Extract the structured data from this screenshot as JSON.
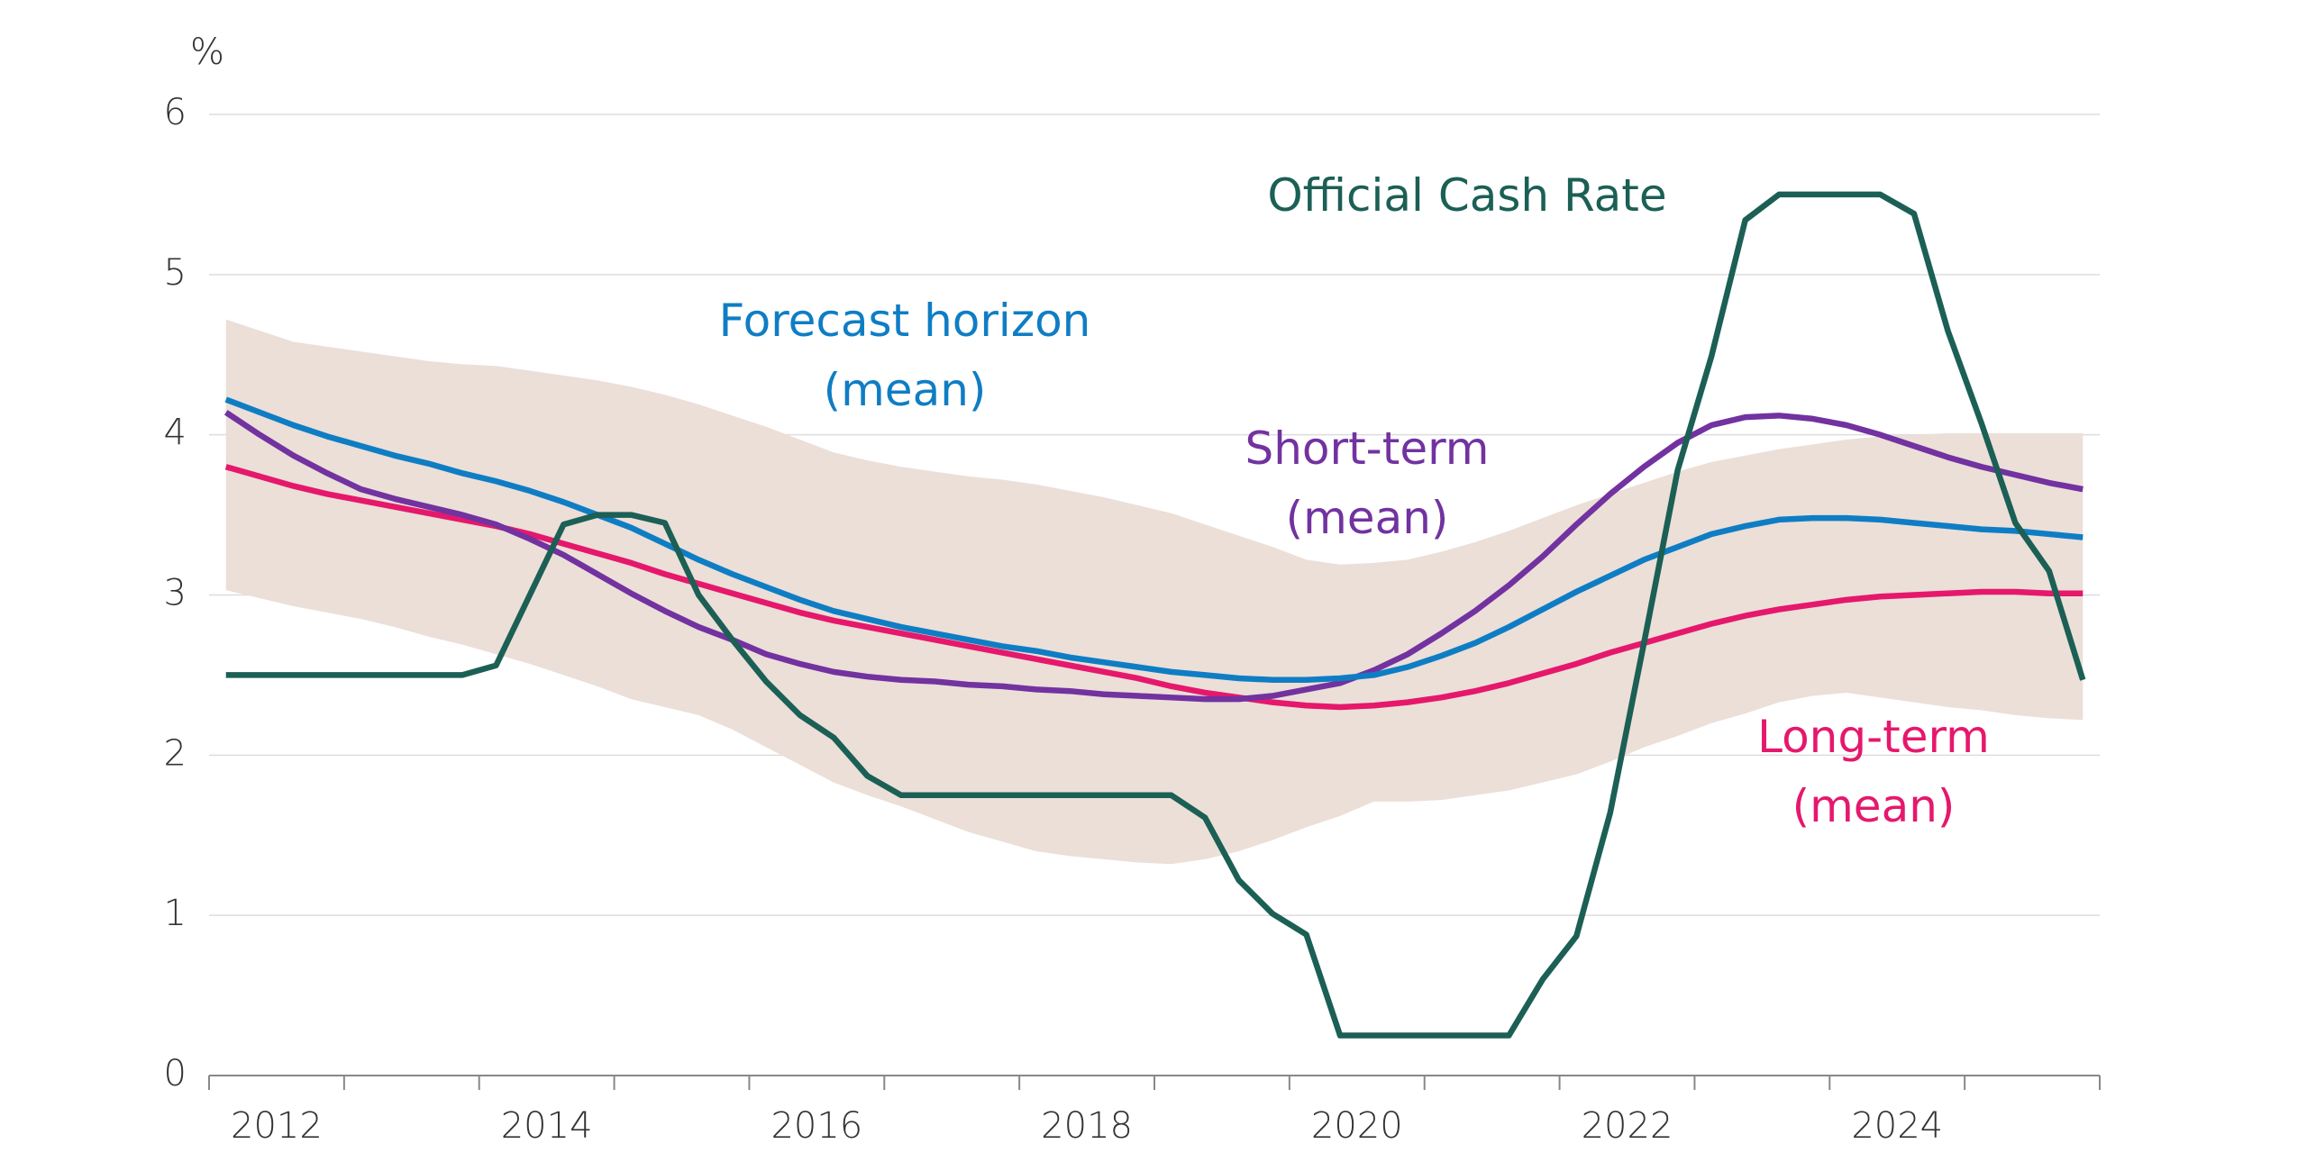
{
  "chart_data": {
    "type": "line",
    "y_unit": "%",
    "x": [
      2012.125,
      2012.375,
      2012.625,
      2012.875,
      2013.125,
      2013.375,
      2013.625,
      2013.875,
      2014.125,
      2014.375,
      2014.625,
      2014.875,
      2015.125,
      2015.375,
      2015.625,
      2015.875,
      2016.125,
      2016.375,
      2016.625,
      2016.875,
      2017.125,
      2017.375,
      2017.625,
      2017.875,
      2018.125,
      2018.375,
      2018.625,
      2018.875,
      2019.125,
      2019.375,
      2019.625,
      2019.875,
      2020.125,
      2020.375,
      2020.625,
      2020.875,
      2021.125,
      2021.375,
      2021.625,
      2021.875,
      2022.125,
      2022.375,
      2022.625,
      2022.875,
      2023.125,
      2023.375,
      2023.625,
      2023.875,
      2024.125,
      2024.375,
      2024.625,
      2024.875,
      2025.125,
      2025.375,
      2025.625,
      2025.875
    ],
    "band": {
      "color": "#ebdfd8",
      "upper": [
        4.72,
        4.65,
        4.58,
        4.55,
        4.52,
        4.49,
        4.46,
        4.44,
        4.43,
        4.4,
        4.37,
        4.34,
        4.3,
        4.25,
        4.19,
        4.12,
        4.05,
        3.97,
        3.89,
        3.84,
        3.8,
        3.77,
        3.74,
        3.72,
        3.69,
        3.65,
        3.61,
        3.56,
        3.51,
        3.44,
        3.37,
        3.3,
        3.22,
        3.19,
        3.2,
        3.22,
        3.27,
        3.33,
        3.4,
        3.48,
        3.56,
        3.63,
        3.7,
        3.77,
        3.83,
        3.87,
        3.91,
        3.94,
        3.97,
        3.99,
        4.0,
        4.01,
        4.01,
        4.01,
        4.01,
        4.01
      ],
      "lower": [
        3.03,
        2.98,
        2.93,
        2.89,
        2.85,
        2.8,
        2.74,
        2.69,
        2.63,
        2.57,
        2.5,
        2.43,
        2.35,
        2.3,
        2.25,
        2.16,
        2.05,
        1.94,
        1.83,
        1.75,
        1.68,
        1.6,
        1.52,
        1.46,
        1.4,
        1.37,
        1.35,
        1.33,
        1.32,
        1.35,
        1.4,
        1.47,
        1.55,
        1.62,
        1.71,
        1.71,
        1.72,
        1.75,
        1.78,
        1.83,
        1.88,
        1.96,
        2.05,
        2.12,
        2.2,
        2.26,
        2.33,
        2.37,
        2.39,
        2.36,
        2.33,
        2.3,
        2.28,
        2.25,
        2.23,
        2.22
      ]
    },
    "series": [
      {
        "name": [
          "Official Cash Rate"
        ],
        "color": "#1b5f55",
        "values": [
          2.5,
          2.5,
          2.5,
          2.5,
          2.5,
          2.5,
          2.5,
          2.5,
          2.56,
          3.0,
          3.44,
          3.5,
          3.5,
          3.45,
          3.0,
          2.72,
          2.46,
          2.25,
          2.11,
          1.87,
          1.75,
          1.75,
          1.75,
          1.75,
          1.75,
          1.75,
          1.75,
          1.75,
          1.75,
          1.61,
          1.22,
          1.01,
          0.88,
          0.25,
          0.25,
          0.25,
          0.25,
          0.25,
          0.25,
          0.6,
          0.87,
          1.64,
          2.7,
          3.78,
          4.49,
          5.34,
          5.5,
          5.5,
          5.5,
          5.5,
          5.38,
          4.65,
          4.07,
          3.45,
          3.15,
          2.47
        ]
      },
      {
        "name": [
          "Forecast horizon",
          "(mean)"
        ],
        "color": "#0f7dc4",
        "values": [
          4.22,
          4.14,
          4.06,
          3.99,
          3.93,
          3.87,
          3.82,
          3.76,
          3.71,
          3.65,
          3.58,
          3.5,
          3.42,
          3.32,
          3.22,
          3.13,
          3.05,
          2.97,
          2.9,
          2.85,
          2.8,
          2.76,
          2.72,
          2.68,
          2.65,
          2.61,
          2.58,
          2.55,
          2.52,
          2.5,
          2.48,
          2.47,
          2.47,
          2.48,
          2.5,
          2.55,
          2.62,
          2.7,
          2.8,
          2.91,
          3.02,
          3.12,
          3.22,
          3.3,
          3.38,
          3.43,
          3.47,
          3.48,
          3.48,
          3.47,
          3.45,
          3.43,
          3.41,
          3.4,
          3.38,
          3.36
        ]
      },
      {
        "name": [
          "Short-term",
          "(mean)"
        ],
        "color": "#7232a0",
        "values": [
          4.14,
          4.0,
          3.87,
          3.76,
          3.66,
          3.6,
          3.55,
          3.5,
          3.44,
          3.35,
          3.25,
          3.13,
          3.01,
          2.9,
          2.8,
          2.72,
          2.63,
          2.57,
          2.52,
          2.49,
          2.47,
          2.46,
          2.44,
          2.43,
          2.41,
          2.4,
          2.38,
          2.37,
          2.36,
          2.35,
          2.35,
          2.37,
          2.41,
          2.45,
          2.53,
          2.63,
          2.76,
          2.9,
          3.06,
          3.24,
          3.44,
          3.63,
          3.8,
          3.95,
          4.06,
          4.11,
          4.12,
          4.1,
          4.06,
          4.0,
          3.93,
          3.86,
          3.8,
          3.75,
          3.7,
          3.66
        ]
      },
      {
        "name": [
          "Long-term",
          "(mean)"
        ],
        "color": "#e5186c",
        "values": [
          3.8,
          3.74,
          3.68,
          3.63,
          3.59,
          3.55,
          3.51,
          3.47,
          3.43,
          3.38,
          3.32,
          3.26,
          3.2,
          3.13,
          3.07,
          3.01,
          2.95,
          2.89,
          2.84,
          2.8,
          2.76,
          2.72,
          2.68,
          2.64,
          2.6,
          2.56,
          2.52,
          2.48,
          2.43,
          2.39,
          2.36,
          2.33,
          2.31,
          2.3,
          2.31,
          2.33,
          2.36,
          2.4,
          2.45,
          2.51,
          2.57,
          2.64,
          2.7,
          2.76,
          2.82,
          2.87,
          2.91,
          2.94,
          2.97,
          2.99,
          3.0,
          3.01,
          3.02,
          3.02,
          3.01,
          3.01
        ]
      }
    ],
    "xlim": [
      2012,
      2026
    ],
    "xticks": [
      2012,
      2013,
      2014,
      2015,
      2016,
      2017,
      2018,
      2019,
      2020,
      2021,
      2022,
      2023,
      2024,
      2025,
      2026
    ],
    "xtick_labels": [
      2012,
      2014,
      2016,
      2018,
      2020,
      2022,
      2024
    ],
    "ylim": [
      0,
      6
    ],
    "yticks": [
      0,
      1,
      2,
      3,
      4,
      5,
      6
    ],
    "grid": true
  }
}
